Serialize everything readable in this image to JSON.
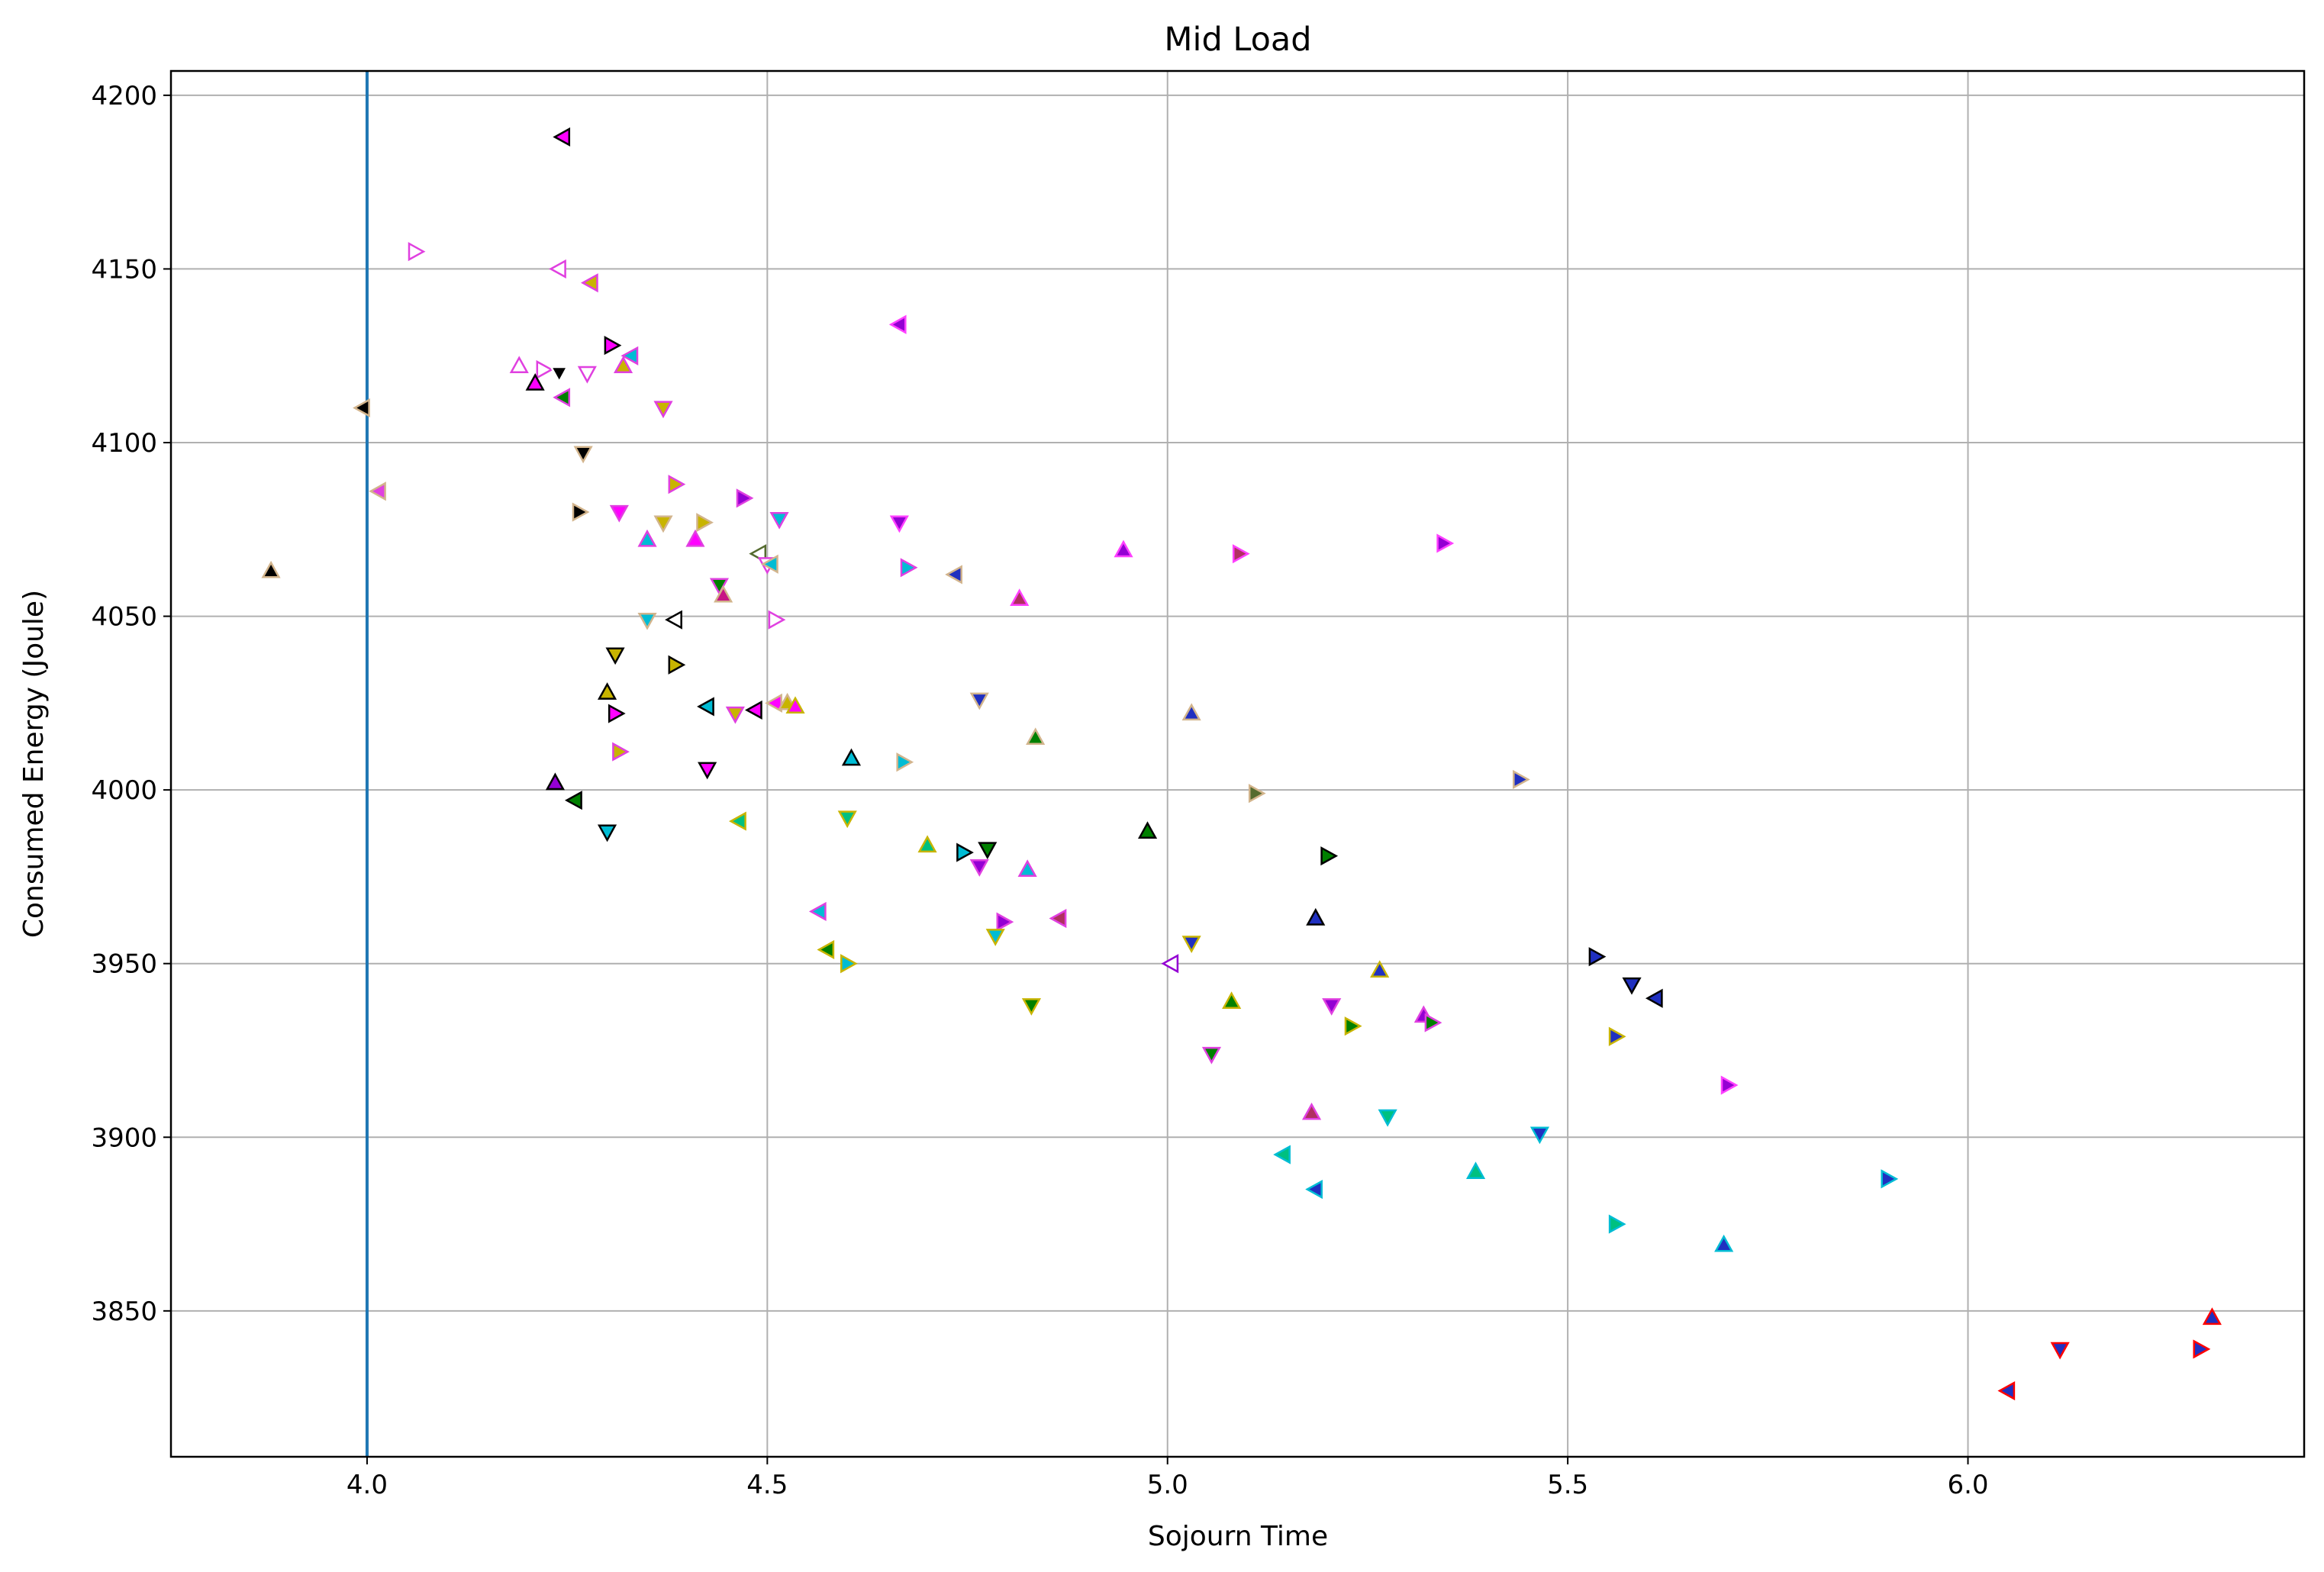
{
  "chart_data": {
    "type": "scatter",
    "title": "Mid Load",
    "xlabel": "Sojourn Time",
    "ylabel": "Consumed Energy (Joule)",
    "xlim": [
      3.755,
      6.42
    ],
    "ylim": [
      3808,
      4207
    ],
    "xticks": [
      4.0,
      4.5,
      5.0,
      5.5,
      6.0
    ],
    "xtick_labels": [
      "4.0",
      "4.5",
      "5.0",
      "5.5",
      "6.0"
    ],
    "yticks": [
      3850,
      3900,
      3950,
      4000,
      4050,
      4100,
      4150,
      4200
    ],
    "ytick_labels": [
      "3850",
      "3900",
      "3950",
      "4000",
      "4050",
      "4100",
      "4150",
      "4200"
    ],
    "grid": true,
    "reference_line": {
      "x": 4.0,
      "color": "#1f77b4"
    },
    "points": [
      {
        "x": 4.245,
        "y": 4188,
        "m": "<",
        "f": "#ff00ff",
        "e": "#000000"
      },
      {
        "x": 4.06,
        "y": 4155,
        "m": ">",
        "f": "#ffffff",
        "e": "#e040e0"
      },
      {
        "x": 4.24,
        "y": 4150,
        "m": "<",
        "f": "#ffffff",
        "e": "#e040e0"
      },
      {
        "x": 4.28,
        "y": 4146,
        "m": "<",
        "f": "#c8b400",
        "e": "#e040e0"
      },
      {
        "x": 4.665,
        "y": 4134,
        "m": "<",
        "f": "#9400d3",
        "e": "#ff40ff"
      },
      {
        "x": 4.305,
        "y": 4128,
        "m": ">",
        "f": "#ff00ff",
        "e": "#000000"
      },
      {
        "x": 4.33,
        "y": 4125,
        "m": "<",
        "f": "#00bcd4",
        "e": "#e040e0"
      },
      {
        "x": 4.32,
        "y": 4122,
        "m": "^",
        "f": "#c8b400",
        "e": "#e040e0"
      },
      {
        "x": 4.19,
        "y": 4122,
        "m": "^",
        "f": "#ffffff",
        "e": "#e040e0"
      },
      {
        "x": 4.22,
        "y": 4121,
        "m": ">",
        "f": "#ffffff",
        "e": "#e040e0"
      },
      {
        "x": 4.24,
        "y": 4120,
        "m": "v",
        "f": "#000000",
        "e": "#ffffff"
      },
      {
        "x": 4.275,
        "y": 4120,
        "m": "v",
        "f": "#ffffff",
        "e": "#e040e0"
      },
      {
        "x": 4.21,
        "y": 4117,
        "m": "^",
        "f": "#ff00ff",
        "e": "#000000"
      },
      {
        "x": 4.245,
        "y": 4113,
        "m": "<",
        "f": "#008000",
        "e": "#e040e0"
      },
      {
        "x": 4.37,
        "y": 4110,
        "m": "v",
        "f": "#c8b400",
        "e": "#e040e0"
      },
      {
        "x": 3.995,
        "y": 4110,
        "m": "<",
        "f": "#000000",
        "e": "#d2b48c"
      },
      {
        "x": 4.27,
        "y": 4097,
        "m": "v",
        "f": "#000000",
        "e": "#d2b48c"
      },
      {
        "x": 4.385,
        "y": 4088,
        "m": ">",
        "f": "#c8b400",
        "e": "#e040e0"
      },
      {
        "x": 4.015,
        "y": 4086,
        "m": "<",
        "f": "#e040e0",
        "e": "#d2b48c"
      },
      {
        "x": 4.47,
        "y": 4084,
        "m": ">",
        "f": "#9400d3",
        "e": "#e040e0"
      },
      {
        "x": 4.265,
        "y": 4080,
        "m": ">",
        "f": "#000000",
        "e": "#d2b48c"
      },
      {
        "x": 4.315,
        "y": 4080,
        "m": "v",
        "f": "#ff00ff",
        "e": "#e040e0"
      },
      {
        "x": 4.515,
        "y": 4078,
        "m": "v",
        "f": "#00bcd4",
        "e": "#e040e0"
      },
      {
        "x": 4.37,
        "y": 4077,
        "m": "v",
        "f": "#c8b400",
        "e": "#d2b48c"
      },
      {
        "x": 4.42,
        "y": 4077,
        "m": ">",
        "f": "#c8b400",
        "e": "#d2b48c"
      },
      {
        "x": 4.665,
        "y": 4077,
        "m": "v",
        "f": "#9400d3",
        "e": "#ff40ff"
      },
      {
        "x": 4.35,
        "y": 4072,
        "m": "^",
        "f": "#00bcd4",
        "e": "#e040e0"
      },
      {
        "x": 4.41,
        "y": 4072,
        "m": "^",
        "f": "#ff00ff",
        "e": "#e040e0"
      },
      {
        "x": 4.945,
        "y": 4069,
        "m": "^",
        "f": "#9400d3",
        "e": "#ff40ff"
      },
      {
        "x": 5.345,
        "y": 4071,
        "m": ">",
        "f": "#9400d3",
        "e": "#ff40ff"
      },
      {
        "x": 5.09,
        "y": 4068,
        "m": ">",
        "f": "#b03060",
        "e": "#ff40ff"
      },
      {
        "x": 4.49,
        "y": 4068,
        "m": "<",
        "f": "#ffffff",
        "e": "#556b2f"
      },
      {
        "x": 4.5,
        "y": 4065,
        "m": "v",
        "f": "#ffffff",
        "e": "#e040e0"
      },
      {
        "x": 4.505,
        "y": 4065,
        "m": "<",
        "f": "#00bcd4",
        "e": "#d2b48c"
      },
      {
        "x": 4.675,
        "y": 4064,
        "m": ">",
        "f": "#00bcd4",
        "e": "#e040e0"
      },
      {
        "x": 4.735,
        "y": 4062,
        "m": "<",
        "f": "#2030c0",
        "e": "#d2b48c"
      },
      {
        "x": 3.88,
        "y": 4063,
        "m": "^",
        "f": "#000000",
        "e": "#d2b48c"
      },
      {
        "x": 4.44,
        "y": 4059,
        "m": "v",
        "f": "#008000",
        "e": "#e040e0"
      },
      {
        "x": 4.445,
        "y": 4056,
        "m": "^",
        "f": "#c71585",
        "e": "#d2b48c"
      },
      {
        "x": 4.815,
        "y": 4055,
        "m": "^",
        "f": "#b03060",
        "e": "#ff40ff"
      },
      {
        "x": 4.35,
        "y": 4049,
        "m": "v",
        "f": "#00bcd4",
        "e": "#d2b48c"
      },
      {
        "x": 4.385,
        "y": 4049,
        "m": "<",
        "f": "#ffffff",
        "e": "#000000"
      },
      {
        "x": 4.51,
        "y": 4049,
        "m": ">",
        "f": "#ffffff",
        "e": "#e040e0"
      },
      {
        "x": 4.31,
        "y": 4039,
        "m": "v",
        "f": "#c8b400",
        "e": "#000000"
      },
      {
        "x": 4.385,
        "y": 4036,
        "m": ">",
        "f": "#c8b400",
        "e": "#000000"
      },
      {
        "x": 4.3,
        "y": 4028,
        "m": "^",
        "f": "#c8b400",
        "e": "#000000"
      },
      {
        "x": 4.765,
        "y": 4026,
        "m": "v",
        "f": "#2030c0",
        "e": "#d2b48c"
      },
      {
        "x": 4.51,
        "y": 4025,
        "m": "<",
        "f": "#ff00ff",
        "e": "#d2b48c"
      },
      {
        "x": 4.525,
        "y": 4025,
        "m": "^",
        "f": "#c8b400",
        "e": "#d2b48c"
      },
      {
        "x": 4.535,
        "y": 4024,
        "m": "^",
        "f": "#ff00ff",
        "e": "#c8b400"
      },
      {
        "x": 4.425,
        "y": 4024,
        "m": "<",
        "f": "#00bcd4",
        "e": "#000000"
      },
      {
        "x": 4.485,
        "y": 4023,
        "m": "<",
        "f": "#ff00ff",
        "e": "#000000"
      },
      {
        "x": 4.46,
        "y": 4022,
        "m": "v",
        "f": "#c8b400",
        "e": "#e040e0"
      },
      {
        "x": 4.31,
        "y": 4022,
        "m": ">",
        "f": "#ff00ff",
        "e": "#000000"
      },
      {
        "x": 5.03,
        "y": 4022,
        "m": "^",
        "f": "#2030c0",
        "e": "#d2b48c"
      },
      {
        "x": 4.835,
        "y": 4015,
        "m": "^",
        "f": "#008000",
        "e": "#d2b48c"
      },
      {
        "x": 4.315,
        "y": 4011,
        "m": ">",
        "f": "#c8b400",
        "e": "#e040e0"
      },
      {
        "x": 4.605,
        "y": 4009,
        "m": "^",
        "f": "#00bcd4",
        "e": "#000000"
      },
      {
        "x": 4.67,
        "y": 4008,
        "m": ">",
        "f": "#00bcd4",
        "e": "#d2b48c"
      },
      {
        "x": 4.425,
        "y": 4006,
        "m": "v",
        "f": "#ff00ff",
        "e": "#000000"
      },
      {
        "x": 5.44,
        "y": 4003,
        "m": ">",
        "f": "#2030c0",
        "e": "#d2b48c"
      },
      {
        "x": 4.235,
        "y": 4002,
        "m": "^",
        "f": "#9400d3",
        "e": "#000000"
      },
      {
        "x": 5.11,
        "y": 3999,
        "m": ">",
        "f": "#556b2f",
        "e": "#d2b48c"
      },
      {
        "x": 4.26,
        "y": 3997,
        "m": "<",
        "f": "#008000",
        "e": "#000000"
      },
      {
        "x": 4.6,
        "y": 3992,
        "m": "v",
        "f": "#00c080",
        "e": "#c8b400"
      },
      {
        "x": 4.465,
        "y": 3991,
        "m": "<",
        "f": "#00c080",
        "e": "#c8b400"
      },
      {
        "x": 4.3,
        "y": 3988,
        "m": "v",
        "f": "#00bcd4",
        "e": "#000000"
      },
      {
        "x": 4.975,
        "y": 3988,
        "m": "^",
        "f": "#008000",
        "e": "#000000"
      },
      {
        "x": 4.7,
        "y": 3984,
        "m": "^",
        "f": "#00c080",
        "e": "#c8b400"
      },
      {
        "x": 4.775,
        "y": 3983,
        "m": "v",
        "f": "#008000",
        "e": "#000000"
      },
      {
        "x": 4.745,
        "y": 3982,
        "m": ">",
        "f": "#00bcd4",
        "e": "#000000"
      },
      {
        "x": 5.2,
        "y": 3981,
        "m": ">",
        "f": "#008000",
        "e": "#000000"
      },
      {
        "x": 4.765,
        "y": 3978,
        "m": "v",
        "f": "#9400d3",
        "e": "#e040e0"
      },
      {
        "x": 4.825,
        "y": 3977,
        "m": "^",
        "f": "#00bcd4",
        "e": "#e040e0"
      },
      {
        "x": 4.565,
        "y": 3965,
        "m": "<",
        "f": "#00bcd4",
        "e": "#e040e0"
      },
      {
        "x": 5.185,
        "y": 3963,
        "m": "^",
        "f": "#2030c0",
        "e": "#000000"
      },
      {
        "x": 4.865,
        "y": 3963,
        "m": "<",
        "f": "#b03060",
        "e": "#e040e0"
      },
      {
        "x": 4.795,
        "y": 3962,
        "m": ">",
        "f": "#9400d3",
        "e": "#e040e0"
      },
      {
        "x": 4.785,
        "y": 3958,
        "m": "v",
        "f": "#00bcd4",
        "e": "#c8b400"
      },
      {
        "x": 5.03,
        "y": 3956,
        "m": "v",
        "f": "#2030c0",
        "e": "#c8b400"
      },
      {
        "x": 4.575,
        "y": 3954,
        "m": "<",
        "f": "#008000",
        "e": "#c8b400"
      },
      {
        "x": 5.535,
        "y": 3952,
        "m": ">",
        "f": "#2030c0",
        "e": "#000000"
      },
      {
        "x": 4.6,
        "y": 3950,
        "m": ">",
        "f": "#00bcd4",
        "e": "#c8b400"
      },
      {
        "x": 5.005,
        "y": 3950,
        "m": "<",
        "f": "#ffffff",
        "e": "#9400d3"
      },
      {
        "x": 5.265,
        "y": 3948,
        "m": "^",
        "f": "#2030c0",
        "e": "#c8b400"
      },
      {
        "x": 5.58,
        "y": 3944,
        "m": "v",
        "f": "#2030c0",
        "e": "#000000"
      },
      {
        "x": 5.61,
        "y": 3940,
        "m": "<",
        "f": "#2030c0",
        "e": "#000000"
      },
      {
        "x": 5.08,
        "y": 3939,
        "m": "^",
        "f": "#008000",
        "e": "#c8b400"
      },
      {
        "x": 5.205,
        "y": 3938,
        "m": "v",
        "f": "#9400d3",
        "e": "#e040e0"
      },
      {
        "x": 4.83,
        "y": 3938,
        "m": "v",
        "f": "#008000",
        "e": "#c8b400"
      },
      {
        "x": 5.32,
        "y": 3935,
        "m": "^",
        "f": "#9400d3",
        "e": "#e040e0"
      },
      {
        "x": 5.33,
        "y": 3933,
        "m": ">",
        "f": "#008000",
        "e": "#e040e0"
      },
      {
        "x": 5.23,
        "y": 3932,
        "m": ">",
        "f": "#008000",
        "e": "#c8b400"
      },
      {
        "x": 5.56,
        "y": 3929,
        "m": ">",
        "f": "#2030c0",
        "e": "#c8b400"
      },
      {
        "x": 5.055,
        "y": 3924,
        "m": "v",
        "f": "#008000",
        "e": "#e040e0"
      },
      {
        "x": 5.7,
        "y": 3915,
        "m": ">",
        "f": "#9400d3",
        "e": "#ff40ff"
      },
      {
        "x": 5.18,
        "y": 3907,
        "m": "^",
        "f": "#b03060",
        "e": "#e040e0"
      },
      {
        "x": 5.275,
        "y": 3906,
        "m": "v",
        "f": "#00c080",
        "e": "#00bcd4"
      },
      {
        "x": 5.465,
        "y": 3901,
        "m": "v",
        "f": "#2030c0",
        "e": "#00bcd4"
      },
      {
        "x": 5.145,
        "y": 3895,
        "m": "<",
        "f": "#00c080",
        "e": "#00bcd4"
      },
      {
        "x": 5.385,
        "y": 3890,
        "m": "^",
        "f": "#00c080",
        "e": "#00bcd4"
      },
      {
        "x": 5.9,
        "y": 3888,
        "m": ">",
        "f": "#2030c0",
        "e": "#00bcd4"
      },
      {
        "x": 5.185,
        "y": 3885,
        "m": "<",
        "f": "#2030c0",
        "e": "#00bcd4"
      },
      {
        "x": 5.56,
        "y": 3875,
        "m": ">",
        "f": "#00c080",
        "e": "#00bcd4"
      },
      {
        "x": 5.695,
        "y": 3869,
        "m": "^",
        "f": "#2030c0",
        "e": "#00bcd4"
      },
      {
        "x": 6.305,
        "y": 3848,
        "m": "^",
        "f": "#2030c0",
        "e": "#ff0000"
      },
      {
        "x": 6.115,
        "y": 3839,
        "m": "v",
        "f": "#2030c0",
        "e": "#ff0000"
      },
      {
        "x": 6.29,
        "y": 3839,
        "m": ">",
        "f": "#2030c0",
        "e": "#ff0000"
      },
      {
        "x": 6.05,
        "y": 3827,
        "m": "<",
        "f": "#2030c0",
        "e": "#ff0000"
      }
    ]
  }
}
